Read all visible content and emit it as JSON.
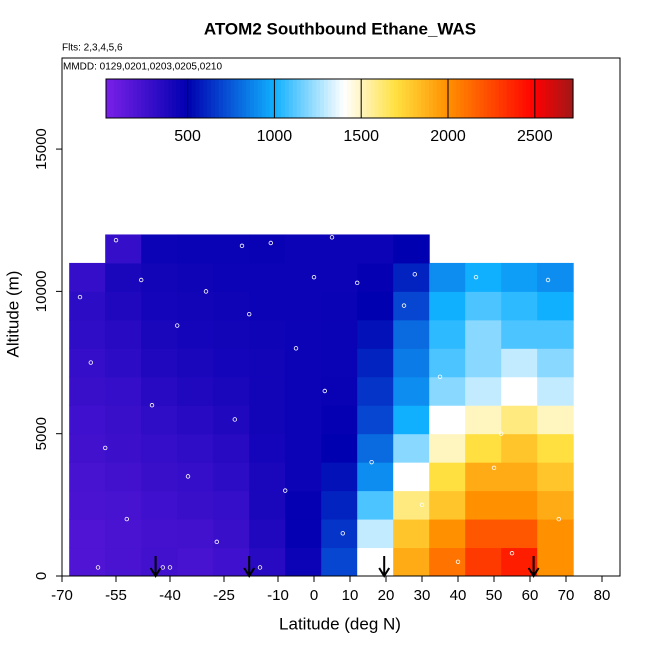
{
  "chart_data": {
    "type": "heatmap",
    "title": "ATOM2 Southbound Ethane_WAS",
    "flights": "Flts: 2,3,4,5,6",
    "dates": "MMDD: 0129,0201,0203,0205,0210",
    "x_label": "Latitude (deg N)",
    "y_label": "Altitude (m)",
    "xlim": [
      -70,
      85
    ],
    "ylim": [
      0,
      18200
    ],
    "xticks": [
      -70,
      -55,
      -40,
      -25,
      -10,
      0,
      10,
      20,
      30,
      40,
      50,
      60,
      70,
      80
    ],
    "yticks": [
      0,
      5000,
      10000,
      15000
    ],
    "lat_edges": [
      -68,
      -58,
      -48,
      -38,
      -28,
      -18,
      -8,
      2,
      12,
      22,
      32,
      42,
      52,
      62,
      72
    ],
    "alt_edges": [
      0,
      1000,
      2000,
      3000,
      4000,
      5000,
      6000,
      7000,
      8000,
      9000,
      10000,
      11000,
      12000
    ],
    "values": [
      [
        200,
        220,
        250,
        230,
        260,
        350,
        450,
        700,
        1400,
        1900,
        2100,
        2300,
        2400,
        2000
      ],
      [
        200,
        220,
        240,
        250,
        280,
        380,
        480,
        650,
        1300,
        1800,
        2000,
        2200,
        2200,
        2000
      ],
      [
        220,
        230,
        260,
        280,
        300,
        400,
        480,
        600,
        1100,
        1600,
        1800,
        2000,
        2000,
        1900
      ],
      [
        230,
        250,
        280,
        300,
        330,
        400,
        450,
        550,
        900,
        1400,
        1700,
        1900,
        1900,
        1800
      ],
      [
        250,
        270,
        300,
        320,
        350,
        420,
        450,
        500,
        800,
        1200,
        1500,
        1700,
        1800,
        1700
      ],
      [
        260,
        280,
        320,
        350,
        380,
        430,
        450,
        480,
        700,
        1000,
        1400,
        1500,
        1600,
        1500
      ],
      [
        280,
        300,
        350,
        380,
        400,
        430,
        450,
        470,
        650,
        900,
        1200,
        1300,
        1400,
        1300
      ],
      [
        300,
        330,
        380,
        400,
        420,
        430,
        450,
        460,
        600,
        850,
        1100,
        1200,
        1300,
        1200
      ],
      [
        320,
        350,
        400,
        420,
        430,
        440,
        450,
        460,
        550,
        800,
        1050,
        1200,
        1100,
        1100
      ],
      [
        330,
        380,
        420,
        430,
        440,
        450,
        450,
        460,
        500,
        700,
        1000,
        1100,
        1050,
        1000
      ],
      [
        300,
        400,
        430,
        440,
        450,
        450,
        450,
        450,
        480,
        600,
        900,
        1000,
        950,
        900
      ],
      [
        null,
        300,
        450,
        460,
        460,
        470,
        450,
        450,
        450,
        500,
        null,
        null,
        null,
        null
      ]
    ],
    "colorbar_lim": [
      30,
      2720
    ],
    "colorbar_ticks": [
      500,
      1000,
      1500,
      2000,
      2500
    ],
    "color_stops": [
      30,
      500,
      1000,
      1400,
      1700,
      2000,
      2500,
      2720
    ],
    "color_stop_colors": [
      "#7b20e8",
      "#0000b0",
      "#10b0ff",
      "#ffffff",
      "#ffe040",
      "#ff9000",
      "#ff0000",
      "#a01818"
    ],
    "samples_x": [
      -65,
      -62,
      -58,
      -55,
      -52,
      -48,
      -45,
      -42,
      -38,
      -35,
      -30,
      -27,
      -22,
      -18,
      -15,
      -12,
      -8,
      -5,
      0,
      3,
      8,
      12,
      16,
      20,
      25,
      30,
      35,
      40,
      45,
      50,
      55,
      60,
      65,
      68,
      -60,
      -40,
      -20,
      5,
      28,
      52
    ],
    "samples_y": [
      9800,
      7500,
      4500,
      11800,
      2000,
      10400,
      6000,
      300,
      8800,
      3500,
      10000,
      1200,
      5500,
      9200,
      300,
      11700,
      3000,
      8000,
      10500,
      6500,
      1500,
      10300,
      4000,
      300,
      9500,
      2500,
      7000,
      500,
      10500,
      3800,
      800,
      6200,
      10400,
      2000,
      300,
      300,
      11600,
      11900,
      10600,
      5000
    ],
    "arrows_lat": [
      -44,
      -18,
      19.5,
      61
    ]
  }
}
